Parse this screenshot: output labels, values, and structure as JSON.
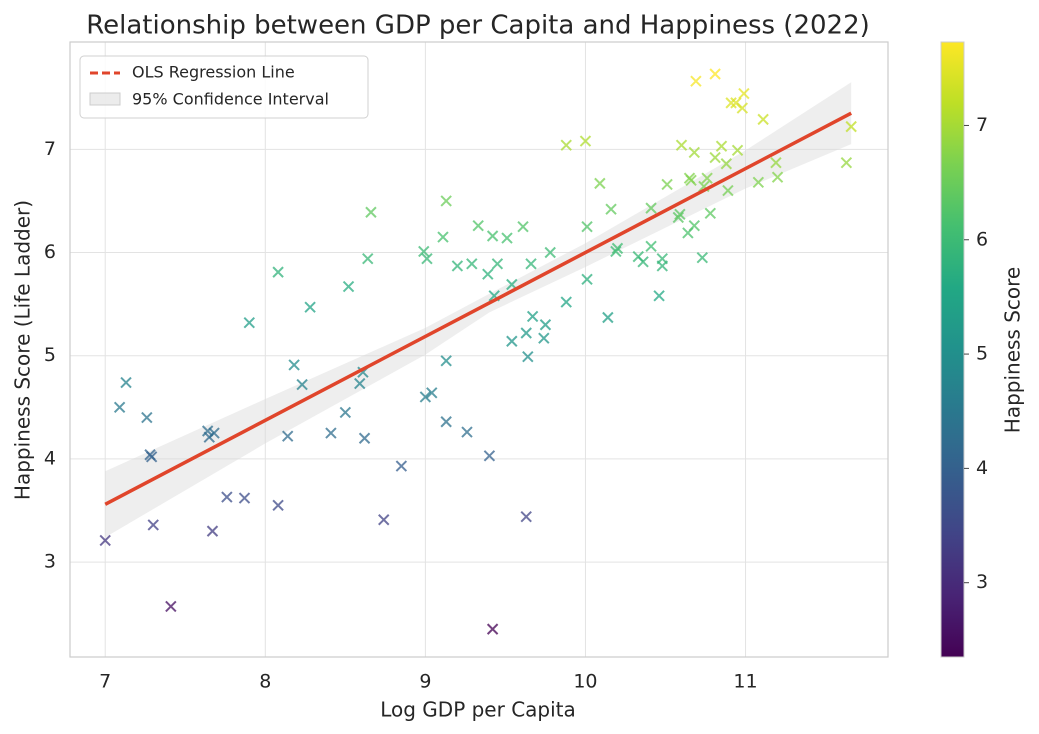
{
  "chart_data": {
    "type": "scatter",
    "title": "Relationship between GDP per Capita and Happiness (2022)",
    "x_label": "Log GDP per Capita",
    "y_label": "Happiness Score (Life Ladder)",
    "x": [
      7.0,
      7.09,
      7.13,
      7.26,
      7.28,
      7.29,
      7.3,
      7.41,
      7.64,
      7.65,
      7.68,
      7.67,
      7.76,
      7.87,
      7.9,
      8.08,
      8.08,
      8.14,
      8.18,
      8.23,
      8.28,
      8.41,
      8.5,
      8.52,
      8.59,
      8.61,
      8.62,
      8.64,
      8.66,
      8.74,
      8.85,
      8.99,
      9.01,
      9.0,
      9.04,
      9.11,
      9.13,
      9.13,
      9.13,
      9.2,
      9.26,
      9.29,
      9.33,
      9.39,
      9.4,
      9.42,
      9.43,
      9.45,
      9.42,
      9.51,
      9.54,
      9.54,
      9.61,
      9.63,
      9.64,
      9.63,
      9.66,
      9.67,
      9.74,
      9.75,
      9.78,
      9.88,
      9.88,
      10.0,
      10.01,
      10.01,
      10.09,
      10.14,
      10.16,
      10.19,
      10.2,
      10.33,
      10.36,
      10.41,
      10.41,
      10.46,
      10.48,
      10.48,
      10.51,
      10.58,
      10.59,
      10.6,
      10.64,
      10.65,
      10.66,
      10.68,
      10.68,
      10.69,
      10.73,
      10.74,
      10.76,
      10.78,
      10.81,
      10.81,
      10.85,
      10.88,
      10.89,
      10.91,
      10.94,
      10.95,
      10.98,
      10.99,
      11.08,
      11.11,
      11.19,
      11.2,
      11.63,
      11.66
    ],
    "values": [
      3.21,
      4.5,
      4.74,
      4.4,
      4.04,
      4.02,
      3.36,
      2.57,
      4.27,
      4.21,
      4.25,
      3.3,
      3.63,
      3.62,
      5.32,
      5.81,
      3.55,
      4.22,
      4.91,
      4.72,
      5.47,
      4.25,
      4.45,
      5.67,
      4.73,
      4.84,
      4.2,
      5.94,
      6.39,
      3.41,
      3.93,
      6.01,
      5.94,
      4.6,
      4.64,
      6.15,
      6.5,
      4.95,
      4.36,
      5.87,
      4.26,
      5.89,
      6.26,
      5.79,
      4.03,
      6.16,
      5.58,
      5.89,
      2.35,
      6.14,
      5.14,
      5.69,
      6.25,
      5.22,
      4.99,
      3.44,
      5.89,
      5.38,
      5.17,
      5.3,
      6.0,
      7.04,
      5.52,
      7.08,
      6.25,
      5.74,
      6.67,
      5.37,
      6.42,
      6.01,
      6.04,
      5.96,
      5.91,
      6.43,
      6.06,
      5.58,
      5.94,
      5.87,
      6.66,
      6.34,
      6.37,
      7.04,
      6.19,
      6.72,
      6.7,
      6.97,
      6.26,
      7.66,
      5.95,
      6.64,
      6.72,
      6.38,
      7.73,
      6.92,
      7.03,
      6.86,
      6.6,
      7.45,
      7.45,
      6.99,
      7.4,
      7.54,
      6.68,
      7.29,
      6.87,
      6.73,
      6.87,
      7.22
    ],
    "regression": {
      "name": "OLS Regression Line",
      "color": "#e0452b",
      "x": [
        7.0,
        11.66
      ],
      "values": [
        3.56,
        7.35
      ]
    },
    "confidence_interval": {
      "name": "95% Confidence Interval",
      "color": "#d9d9d9",
      "x": [
        7.0,
        8.0,
        9.0,
        9.4,
        10.0,
        11.0,
        11.66
      ],
      "lower": [
        3.24,
        4.15,
        5.01,
        5.42,
        5.86,
        6.62,
        7.05
      ],
      "upper": [
        3.88,
        4.58,
        5.27,
        5.6,
        6.09,
        6.99,
        7.65
      ]
    },
    "xlim": [
      6.78,
      11.89
    ],
    "ylim": [
      2.08,
      8.04
    ],
    "xticks": [
      7,
      8,
      9,
      10,
      11
    ],
    "yticks": [
      3,
      4,
      5,
      6,
      7
    ],
    "grid": true,
    "legend": "upper-left",
    "colorbar": {
      "label": "Happiness Score",
      "colormap": "viridis",
      "lim": [
        2.35,
        7.73
      ],
      "ticks": [
        3,
        4,
        5,
        6,
        7
      ]
    }
  }
}
